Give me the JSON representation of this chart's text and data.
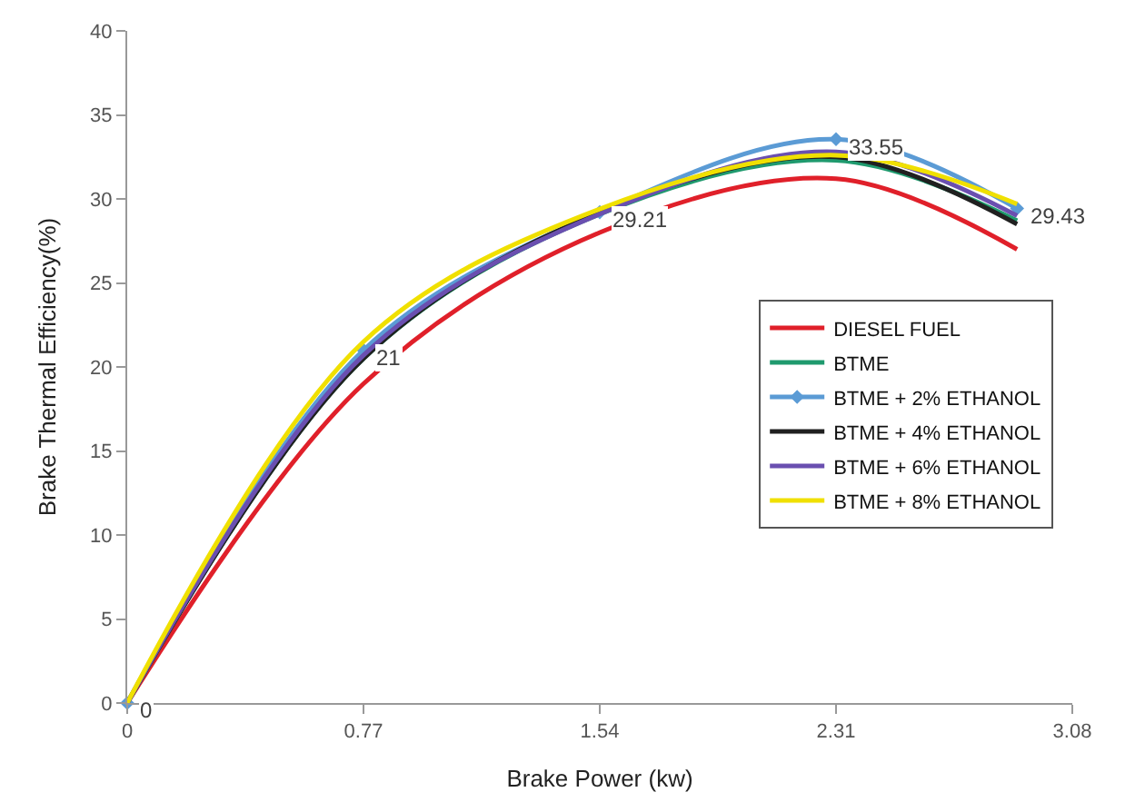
{
  "chart_data": {
    "type": "line",
    "xlabel": "Brake Power (kw)",
    "ylabel": "Brake Thermal Efficiency(%)",
    "x": [
      0,
      0.77,
      1.54,
      2.31,
      2.9
    ],
    "xlim": [
      0,
      3.08
    ],
    "xticks": [
      0,
      0.77,
      1.54,
      2.31,
      3.08
    ],
    "ylim": [
      0,
      40
    ],
    "yticks": [
      0,
      5,
      10,
      15,
      20,
      25,
      30,
      35,
      40
    ],
    "grid": false,
    "legend": "right",
    "line_style": "solid",
    "series": [
      {
        "name": "DIESEL FUEL",
        "color": "#e0202a",
        "values": [
          0,
          19,
          28,
          31.2,
          27
        ]
      },
      {
        "name": "BTME",
        "color": "#1f9a6e",
        "values": [
          0,
          20.5,
          29.1,
          32.3,
          28.7
        ]
      },
      {
        "name": "BTME + 2% ETHANOL",
        "color": "#5b9bd5",
        "marker": "diamond",
        "values": [
          0,
          21,
          29.21,
          33.55,
          29.43
        ],
        "value_labels": [
          "0",
          "21",
          "29.21",
          "33.55",
          "29.43"
        ]
      },
      {
        "name": "BTME + 4% ETHANOL",
        "color": "#202020",
        "values": [
          0,
          20.5,
          29.2,
          32.5,
          28.5
        ]
      },
      {
        "name": "BTME + 6% ETHANOL",
        "color": "#6a4fb0",
        "values": [
          0,
          20.7,
          29.1,
          32.8,
          29
        ]
      },
      {
        "name": "BTME + 8% ETHANOL",
        "color": "#f0e000",
        "values": [
          0,
          21.5,
          29.4,
          32.6,
          29.7
        ]
      }
    ]
  }
}
